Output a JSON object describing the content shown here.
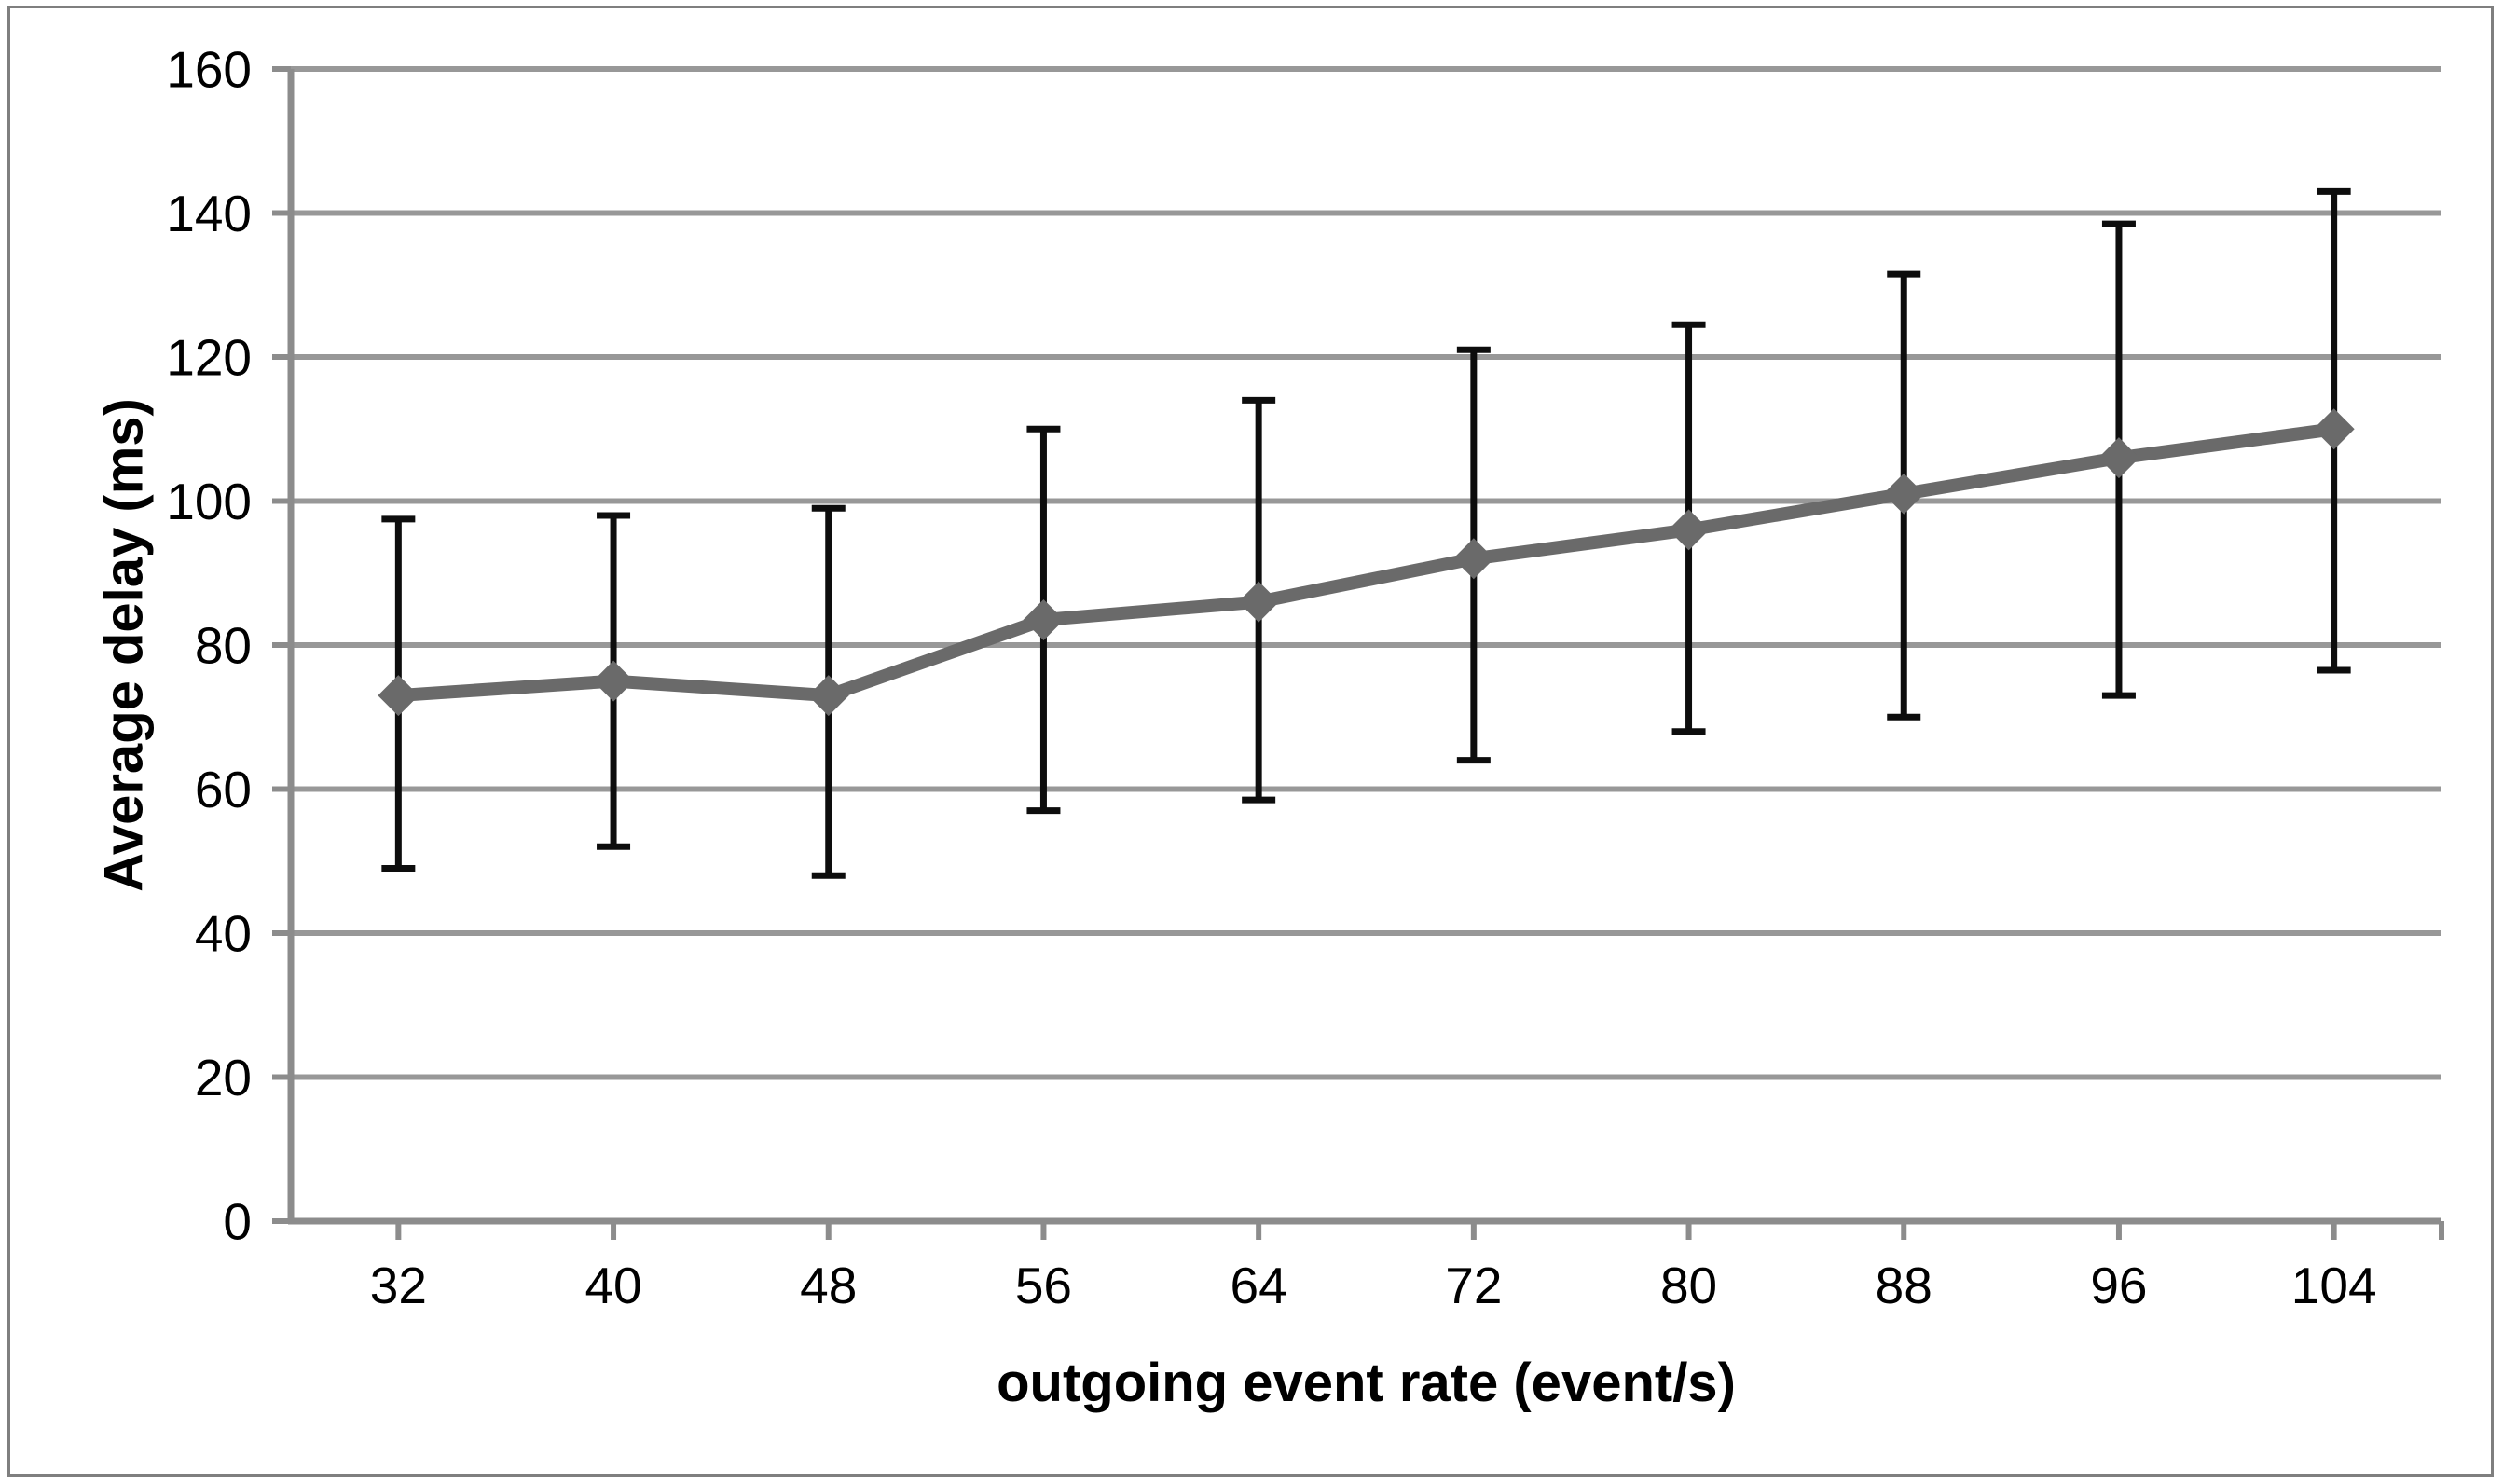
{
  "chart_data": {
    "type": "line",
    "title": "",
    "xlabel": "outgoing event rate (event/s)",
    "ylabel": "Average delay (ms)",
    "categories": [
      32,
      40,
      48,
      56,
      64,
      72,
      80,
      88,
      96,
      104
    ],
    "series": [
      {
        "name": "Average delay",
        "values": [
          73,
          75,
          73,
          83.5,
          86,
          92,
          96,
          101,
          106,
          110
        ],
        "error_upper": [
          97.5,
          98,
          99,
          110,
          114,
          121,
          124.5,
          131.5,
          138.5,
          143
        ],
        "error_lower": [
          49,
          52,
          48,
          57,
          58.5,
          64,
          68,
          70,
          73,
          76.5
        ]
      }
    ],
    "ylim": [
      0,
      160
    ],
    "y_ticks": [
      0,
      20,
      40,
      60,
      80,
      100,
      120,
      140,
      160
    ],
    "grid": "horizontal",
    "legend": "none",
    "marker": "diamond",
    "colors": {
      "series": "#6a6a6a",
      "error_bar": "#0d0d0d",
      "gridline": "#989898",
      "axis": "#8c8c8c",
      "border": "#7f7f7f",
      "text": "#000000",
      "background": "#ffffff"
    }
  }
}
